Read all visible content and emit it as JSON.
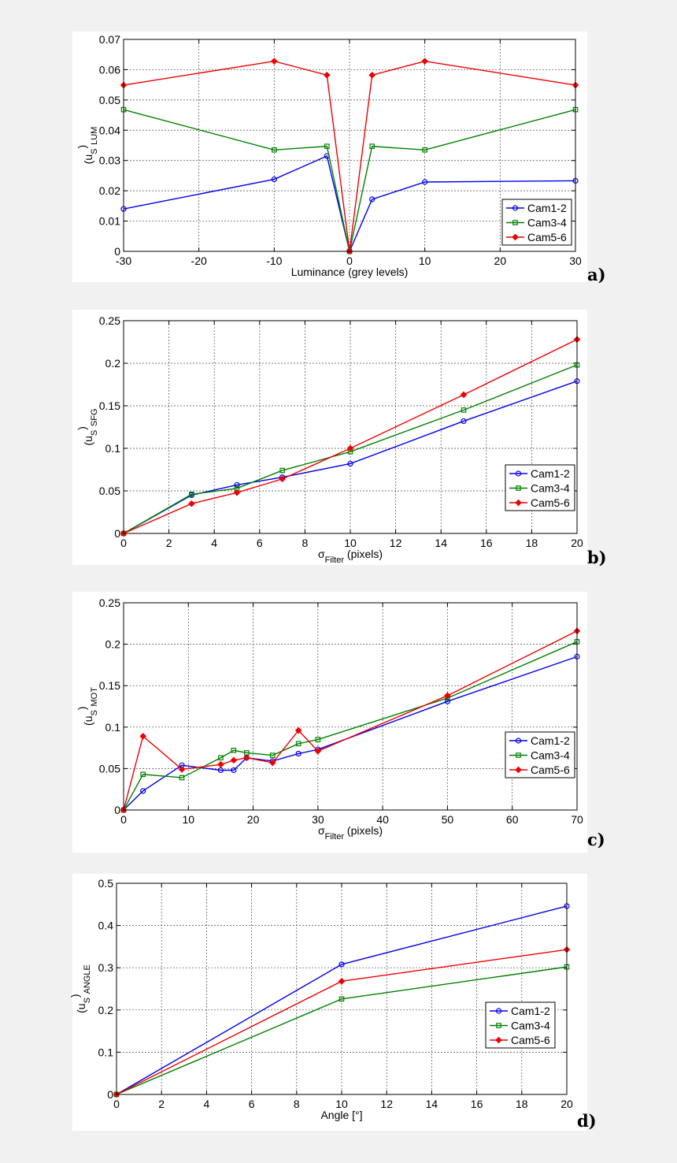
{
  "colors": {
    "Cam1-2": "#0000ee",
    "Cam3-4": "#008000",
    "Cam5-6": "#ee0000"
  },
  "markers": {
    "Cam1-2": "circle",
    "Cam3-4": "square",
    "Cam5-6": "diamond"
  },
  "chart_data": [
    {
      "type": "line",
      "panel_label": "a)",
      "xlabel": "Luminance (grey levels)",
      "ylabel": "(u",
      "ylabel_sub1": "S",
      "ylabel_close": ")",
      "ylabel_sub2": "LUM",
      "xlim": [
        -30,
        30
      ],
      "ylim": [
        0,
        0.07
      ],
      "xticks": [
        -30,
        -20,
        -10,
        0,
        10,
        20,
        30
      ],
      "yticks": [
        0,
        0.01,
        0.02,
        0.03,
        0.04,
        0.05,
        0.06,
        0.07
      ],
      "ytick_decimals": 2,
      "grid": true,
      "legend_position": "lower-right",
      "x": [
        -30,
        -10,
        -3,
        0,
        3,
        10,
        30
      ],
      "series": [
        {
          "name": "Cam1-2",
          "values": [
            0.014,
            0.0238,
            0.0315,
            0.0,
            0.0172,
            0.0229,
            0.0233
          ]
        },
        {
          "name": "Cam3-4",
          "values": [
            0.0468,
            0.0335,
            0.0347,
            0.0,
            0.0347,
            0.0335,
            0.0468
          ]
        },
        {
          "name": "Cam5-6",
          "values": [
            0.0549,
            0.0628,
            0.0582,
            0.0,
            0.0582,
            0.0628,
            0.0549
          ]
        }
      ]
    },
    {
      "type": "line",
      "panel_label": "b)",
      "xlabel": "σ",
      "xlabel_sub": "Filter",
      "xlabel_rest": " (pixels)",
      "ylabel": "(u",
      "ylabel_sub1": "S",
      "ylabel_close": ")",
      "ylabel_sub2": "SFG",
      "xlim": [
        0,
        20
      ],
      "ylim": [
        0,
        0.25
      ],
      "xticks": [
        0,
        2,
        4,
        6,
        8,
        10,
        12,
        14,
        16,
        18,
        20
      ],
      "yticks": [
        0,
        0.05,
        0.1,
        0.15,
        0.2,
        0.25
      ],
      "grid": true,
      "legend_position": "lower-right",
      "x": [
        0,
        3,
        5,
        7,
        10,
        15,
        20
      ],
      "series": [
        {
          "name": "Cam1-2",
          "values": [
            0,
            0.045,
            0.057,
            0.066,
            0.082,
            0.132,
            0.179
          ]
        },
        {
          "name": "Cam3-4",
          "values": [
            0,
            0.046,
            0.053,
            0.074,
            0.096,
            0.145,
            0.198
          ]
        },
        {
          "name": "Cam5-6",
          "values": [
            0,
            0.035,
            0.048,
            0.064,
            0.1,
            0.163,
            0.228
          ]
        }
      ]
    },
    {
      "type": "line",
      "panel_label": "c)",
      "xlabel": "σ",
      "xlabel_sub": "Filter",
      "xlabel_rest": " (pixels)",
      "ylabel": "(u",
      "ylabel_sub1": "S",
      "ylabel_close": ")",
      "ylabel_sub2": "MOT",
      "xlim": [
        0,
        70
      ],
      "ylim": [
        0,
        0.25
      ],
      "xticks": [
        0,
        10,
        20,
        30,
        40,
        50,
        60,
        70
      ],
      "yticks": [
        0,
        0.05,
        0.1,
        0.15,
        0.2,
        0.25
      ],
      "grid": true,
      "legend_position": "lower-right",
      "x": [
        0,
        3,
        9,
        15,
        17,
        19,
        23,
        27,
        30,
        50,
        70
      ],
      "series": [
        {
          "name": "Cam1-2",
          "values": [
            0,
            0.023,
            0.054,
            0.048,
            0.048,
            0.063,
            0.059,
            0.068,
            0.073,
            0.131,
            0.185
          ]
        },
        {
          "name": "Cam3-4",
          "values": [
            0,
            0.043,
            0.039,
            0.063,
            0.072,
            0.069,
            0.066,
            0.08,
            0.085,
            0.135,
            0.203
          ]
        },
        {
          "name": "Cam5-6",
          "values": [
            0,
            0.089,
            0.049,
            0.055,
            0.06,
            0.063,
            0.057,
            0.096,
            0.071,
            0.138,
            0.216
          ]
        }
      ]
    },
    {
      "type": "line",
      "panel_label": "d)",
      "xlabel": "Angle [°]",
      "ylabel": "(u",
      "ylabel_sub1": "S",
      "ylabel_close": ")",
      "ylabel_sub2": "ANGLE",
      "xlim": [
        0,
        20
      ],
      "ylim": [
        0,
        0.5
      ],
      "xticks": [
        0,
        2,
        4,
        6,
        8,
        10,
        12,
        14,
        16,
        18,
        20
      ],
      "yticks": [
        0,
        0.1,
        0.2,
        0.3,
        0.4,
        0.5
      ],
      "grid": true,
      "legend_position": "lower-right",
      "x": [
        0,
        10,
        20
      ],
      "series": [
        {
          "name": "Cam1-2",
          "values": [
            0,
            0.308,
            0.446
          ]
        },
        {
          "name": "Cam3-4",
          "values": [
            0,
            0.226,
            0.302
          ]
        },
        {
          "name": "Cam5-6",
          "values": [
            0,
            0.268,
            0.343
          ]
        }
      ]
    }
  ]
}
